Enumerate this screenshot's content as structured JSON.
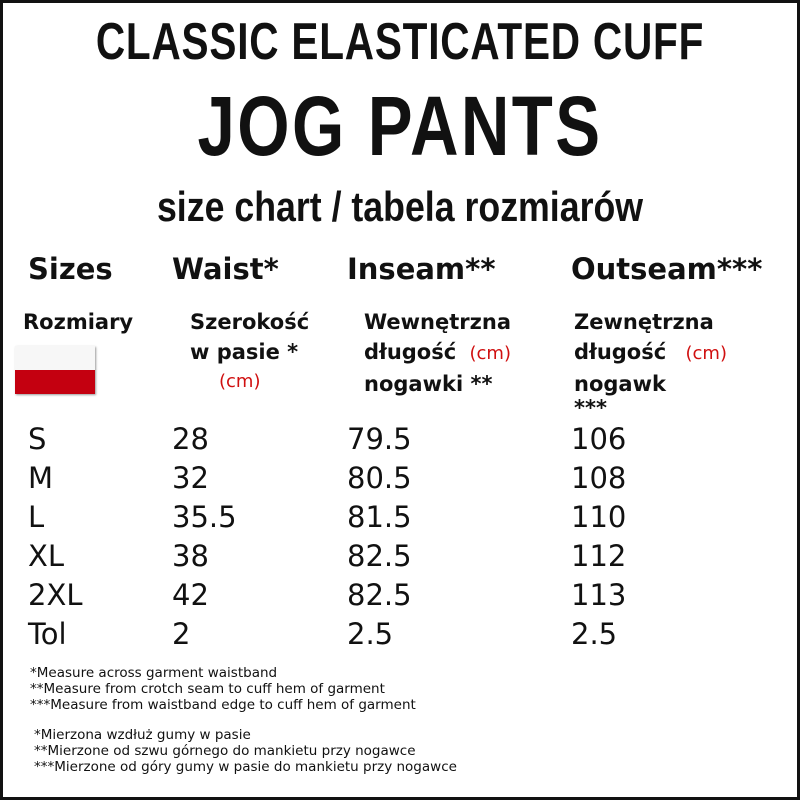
{
  "title": {
    "line1": "CLASSIC ELASTICATED CUFF",
    "line2": "JOG PANTS",
    "line3": "size chart / tabela rozmiarów"
  },
  "colors": {
    "unit_red": "#d01010",
    "flag_white": "#f7f7f7",
    "flag_red": "#c40010"
  },
  "headers": [
    "Sizes",
    "Waist*",
    "Inseam**",
    "Outseam***"
  ],
  "polish_headers": {
    "sizes": "Rozmiary",
    "waist": [
      "Szerokość",
      "w pasie *"
    ],
    "inseam": [
      "Wewnętrzna",
      "długość",
      "nogawki **"
    ],
    "outseam": [
      "Zewnętrzna",
      "długość",
      "nogawk",
      "***"
    ],
    "unit": "(cm)",
    "flag_icon": "poland-flag-icon"
  },
  "rows": [
    [
      "S",
      "28",
      "79.5",
      "106"
    ],
    [
      "M",
      "32",
      "80.5",
      "108"
    ],
    [
      "L",
      "35.5",
      "81.5",
      "110"
    ],
    [
      "XL",
      "38",
      "82.5",
      "112"
    ],
    [
      "2XL",
      "42",
      "82.5",
      "113"
    ],
    [
      "Tol",
      "2",
      "2.5",
      "2.5"
    ]
  ],
  "notes_en": [
    "*Measure across garment waistband",
    "**Measure from crotch seam to cuff hem of garment",
    "***Measure from waistband edge to cuff hem of garment"
  ],
  "notes_pl": [
    "*Mierzona wzdłuż gumy w pasie",
    "**Mierzone od szwu górnego do mankietu przy nogawce",
    "***Mierzone od góry gumy w pasie do mankietu przy nogawce"
  ]
}
